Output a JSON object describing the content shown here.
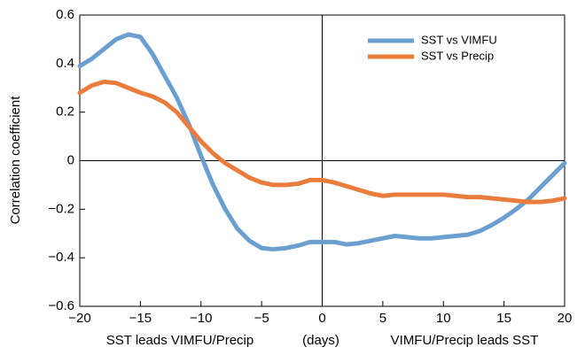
{
  "chart_data": {
    "type": "line",
    "ylabel": "Correlation coefficient",
    "xlabel": [
      "SST leads VIMFU/Precip",
      "(days)",
      "VIMFU/Precip leads SST"
    ],
    "x": [
      -20,
      -19,
      -18,
      -17,
      -16,
      -15,
      -14,
      -13,
      -12,
      -11,
      -10,
      -9,
      -8,
      -7,
      -6,
      -5,
      -4,
      -3,
      -2,
      -1,
      0,
      1,
      2,
      3,
      4,
      5,
      6,
      7,
      8,
      9,
      10,
      11,
      12,
      13,
      14,
      15,
      16,
      17,
      18,
      19,
      20
    ],
    "series": [
      {
        "name": "SST vs VIMFU",
        "color": "#6a9fd0",
        "values": [
          0.39,
          0.42,
          0.46,
          0.5,
          0.52,
          0.51,
          0.44,
          0.35,
          0.26,
          0.15,
          0.02,
          -0.1,
          -0.2,
          -0.28,
          -0.33,
          -0.36,
          -0.365,
          -0.36,
          -0.35,
          -0.335,
          -0.335,
          -0.335,
          -0.345,
          -0.34,
          -0.33,
          -0.32,
          -0.31,
          -0.315,
          -0.32,
          -0.32,
          -0.315,
          -0.31,
          -0.305,
          -0.29,
          -0.265,
          -0.235,
          -0.2,
          -0.16,
          -0.11,
          -0.06,
          -0.01
        ]
      },
      {
        "name": "SST vs Precip",
        "color": "#eb7d3c",
        "values": [
          0.28,
          0.31,
          0.325,
          0.32,
          0.3,
          0.28,
          0.265,
          0.24,
          0.2,
          0.14,
          0.08,
          0.03,
          -0.01,
          -0.04,
          -0.07,
          -0.09,
          -0.1,
          -0.1,
          -0.095,
          -0.08,
          -0.08,
          -0.09,
          -0.105,
          -0.12,
          -0.135,
          -0.145,
          -0.14,
          -0.14,
          -0.14,
          -0.14,
          -0.14,
          -0.145,
          -0.15,
          -0.15,
          -0.155,
          -0.16,
          -0.165,
          -0.17,
          -0.17,
          -0.165,
          -0.155
        ]
      }
    ],
    "xlim": [
      -20,
      20
    ],
    "xticks": [
      {
        "value": -20,
        "label": "−20"
      },
      {
        "value": -15,
        "label": "−15"
      },
      {
        "value": -10,
        "label": "−10"
      },
      {
        "value": -5,
        "label": "−5"
      },
      0,
      5,
      10,
      15,
      20
    ],
    "ylim": [
      -0.6,
      0.6
    ],
    "yticks": [
      {
        "value": -0.6,
        "label": "−0.6"
      },
      {
        "value": -0.4,
        "label": "−0.4"
      },
      {
        "value": -0.2,
        "label": "−0.2"
      },
      0,
      0.2,
      0.4,
      0.6
    ],
    "legend": "upper right"
  }
}
